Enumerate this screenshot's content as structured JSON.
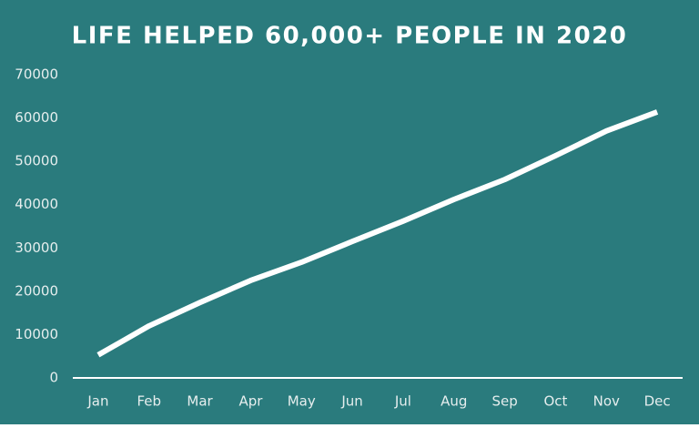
{
  "chart_data": {
    "type": "line",
    "title": "LIFE HELPED 60,000+ PEOPLE IN 2020",
    "categories": [
      "Jan",
      "Feb",
      "Mar",
      "Apr",
      "May",
      "Jun",
      "Jul",
      "Aug",
      "Sep",
      "Oct",
      "Nov",
      "Dec"
    ],
    "values": [
      5300,
      12000,
      17400,
      22500,
      26700,
      31500,
      36200,
      41200,
      45800,
      51300,
      57000,
      61400
    ],
    "color": "#ffffff",
    "background": "#2a7b7d",
    "ylim": [
      0,
      70000
    ],
    "yticks": [
      0,
      10000,
      20000,
      30000,
      40000,
      50000,
      60000,
      70000
    ],
    "grid": false
  }
}
